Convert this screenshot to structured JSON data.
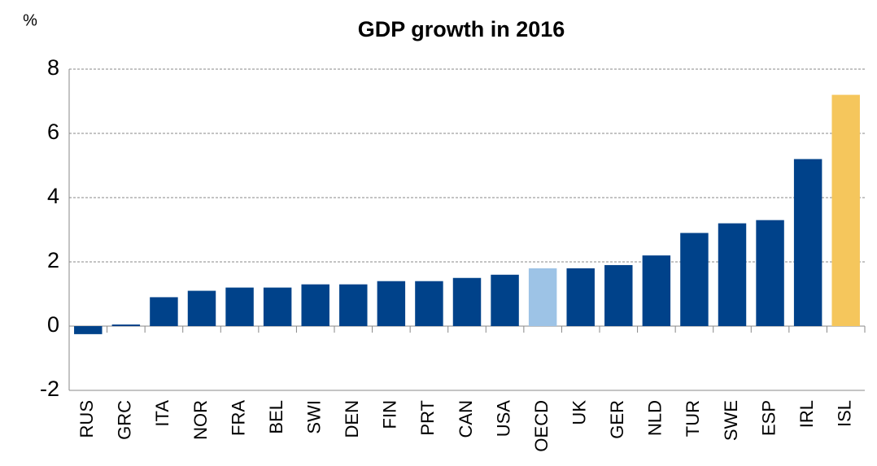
{
  "chart_data": {
    "type": "bar",
    "title": "GDP growth in 2016",
    "y_label": "%",
    "categories": [
      "RUS",
      "GRC",
      "ITA",
      "NOR",
      "FRA",
      "BEL",
      "SWI",
      "DEN",
      "FIN",
      "PRT",
      "CAN",
      "USA",
      "OECD",
      "UK",
      "GER",
      "NLD",
      "TUR",
      "SWE",
      "ESP",
      "IRL",
      "ISL"
    ],
    "values": [
      -0.25,
      0.05,
      0.9,
      1.1,
      1.2,
      1.2,
      1.3,
      1.3,
      1.4,
      1.4,
      1.5,
      1.6,
      1.8,
      1.8,
      1.9,
      2.2,
      2.9,
      3.2,
      3.3,
      5.2,
      7.2
    ],
    "colors": [
      "#00428a",
      "#00428a",
      "#00428a",
      "#00428a",
      "#00428a",
      "#00428a",
      "#00428a",
      "#00428a",
      "#00428a",
      "#00428a",
      "#00428a",
      "#00428a",
      "#9dc3e6",
      "#00428a",
      "#00428a",
      "#00428a",
      "#00428a",
      "#00428a",
      "#00428a",
      "#00428a",
      "#f5c65c"
    ],
    "ylim": [
      -2,
      8
    ],
    "yticks": [
      -2,
      0,
      2,
      4,
      6,
      8
    ],
    "grid": true
  }
}
